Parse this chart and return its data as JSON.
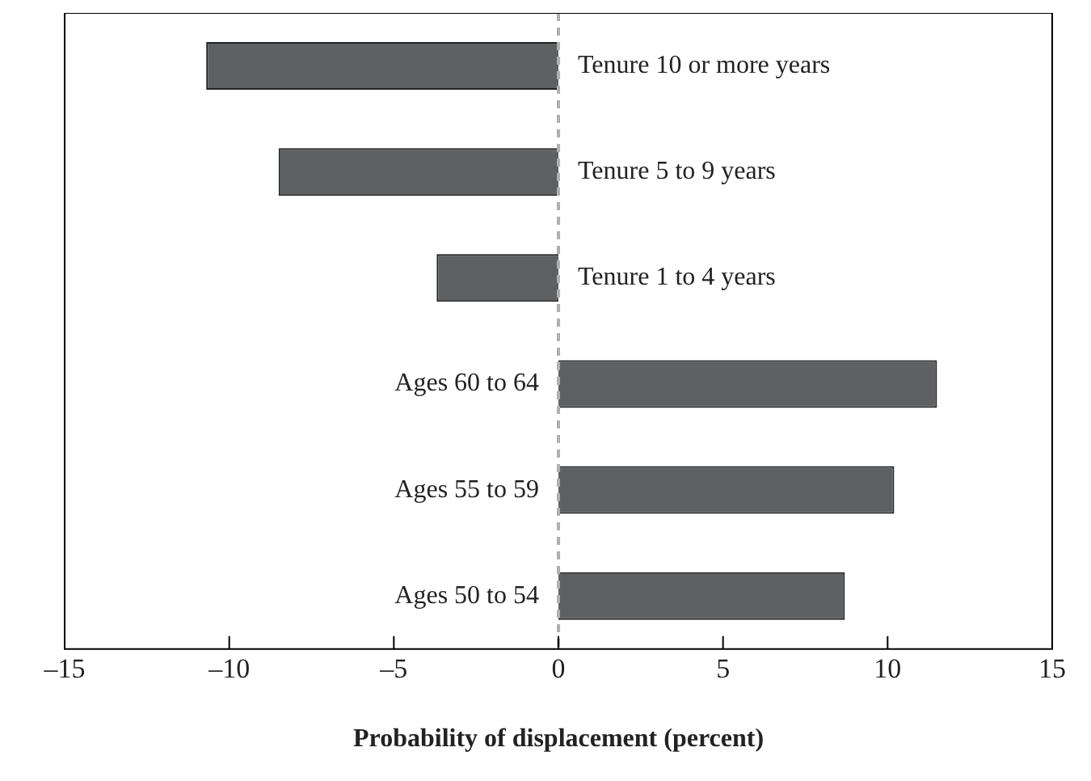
{
  "chart_data": {
    "type": "bar",
    "orientation": "horizontal",
    "xlabel": "Probability of displacement (percent)",
    "categories": [
      "Tenure 10 or more years",
      "Tenure 5 to 9 years",
      "Tenure 1 to 4 years",
      "Ages 60 to 64",
      "Ages 55 to 59",
      "Ages 50 to 54"
    ],
    "values": [
      -10.7,
      -8.5,
      -3.7,
      11.5,
      10.2,
      8.7
    ],
    "color": "#5f6062",
    "xlim": [
      -15,
      15
    ],
    "xticks": [
      {
        "value": -15,
        "label": "–15"
      },
      {
        "value": -10,
        "label": "–10"
      },
      {
        "value": -5,
        "label": "–5"
      },
      0,
      5,
      10,
      15
    ],
    "ref_lines": [
      {
        "axis": "x",
        "value": 0,
        "color": "#b0b0b0",
        "line_style": "dashed"
      }
    ],
    "grid": false,
    "legend": false
  }
}
